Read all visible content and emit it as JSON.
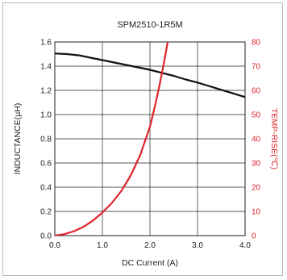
{
  "chart_data": {
    "type": "line",
    "title": "SPM2510-1R5M",
    "xlabel": "DC Current (A)",
    "ylabel": "INDUCTANCE(µH)",
    "y2label": "TEMP-RISE(℃)",
    "xlim": [
      0,
      4
    ],
    "ylim": [
      0,
      1.6
    ],
    "y2lim": [
      0,
      80
    ],
    "grid": true,
    "x_ticks": [
      "0.0",
      "1.0",
      "2.0",
      "3.0",
      "4.0"
    ],
    "y_ticks": [
      "0.0",
      "0.2",
      "0.4",
      "0.6",
      "0.8",
      "1.0",
      "1.2",
      "1.4",
      "1.6"
    ],
    "y2_ticks": [
      "0",
      "10",
      "20",
      "30",
      "40",
      "50",
      "60",
      "70",
      "80"
    ],
    "series": [
      {
        "axis": "left",
        "color": "#111111",
        "x": [
          0,
          0.25,
          0.5,
          0.75,
          1.0,
          1.25,
          1.5,
          1.75,
          2.0,
          2.25,
          2.5,
          2.75,
          3.0,
          3.25,
          3.5,
          3.75,
          4.0
        ],
        "values": [
          1.505,
          1.5,
          1.49,
          1.47,
          1.45,
          1.43,
          1.41,
          1.39,
          1.37,
          1.345,
          1.32,
          1.29,
          1.265,
          1.235,
          1.205,
          1.175,
          1.145
        ]
      },
      {
        "axis": "right",
        "color": "#e0252a",
        "x": [
          0,
          0.2,
          0.4,
          0.6,
          0.8,
          1.0,
          1.2,
          1.4,
          1.6,
          1.8,
          2.0,
          2.1,
          2.2,
          2.3,
          2.4
        ],
        "values": [
          0,
          0.6,
          1.8,
          3.6,
          6.2,
          9.5,
          13.5,
          18.5,
          25,
          33.5,
          45,
          53,
          62,
          72,
          83
        ]
      }
    ]
  }
}
